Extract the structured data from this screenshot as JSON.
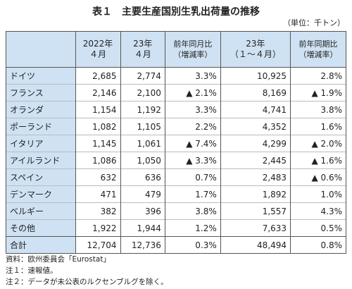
{
  "header": {
    "title": "表１　主要生産国別生乳出荷量の推移",
    "unit": "（単位：千トン）"
  },
  "table": {
    "columns": [
      "",
      "2022年\n４月",
      "23年\n４月",
      "前年同月比\n（増減率）",
      "23年\n（１～４月）",
      "前年同期比\n（増減率）"
    ],
    "rows": [
      [
        "ドイツ",
        "2,685",
        "2,774",
        "3.3%",
        "10,925",
        "2.8%"
      ],
      [
        "フランス",
        "2,146",
        "2,100",
        "▲ 2.1%",
        "8,169",
        "▲ 1.9%"
      ],
      [
        "オランダ",
        "1,154",
        "1,192",
        "3.3%",
        "4,741",
        "3.8%"
      ],
      [
        "ポーランド",
        "1,082",
        "1,105",
        "2.2%",
        "4,352",
        "1.6%"
      ],
      [
        "イタリア",
        "1,145",
        "1,061",
        "▲ 7.4%",
        "4,299",
        "▲ 2.0%"
      ],
      [
        "アイルランド",
        "1,086",
        "1,050",
        "▲ 3.3%",
        "2,445",
        "▲ 1.6%"
      ],
      [
        "スペイン",
        "632",
        "636",
        "0.7%",
        "2,483",
        "▲ 0.6%"
      ],
      [
        "デンマーク",
        "471",
        "479",
        "1.7%",
        "1,892",
        "1.0%"
      ],
      [
        "ベルギー",
        "382",
        "396",
        "3.8%",
        "1,557",
        "4.3%"
      ],
      [
        "その他",
        "1,922",
        "1,944",
        "1.2%",
        "7,633",
        "0.5%"
      ],
      [
        "合計",
        "12,704",
        "12,736",
        "0.3%",
        "48,494",
        "0.8%"
      ]
    ]
  },
  "notes": [
    "資料：欧州委員会「Eurostat」",
    "注１：速報値。",
    "注２：データが未公表のルクセンブルグを除く。"
  ]
}
